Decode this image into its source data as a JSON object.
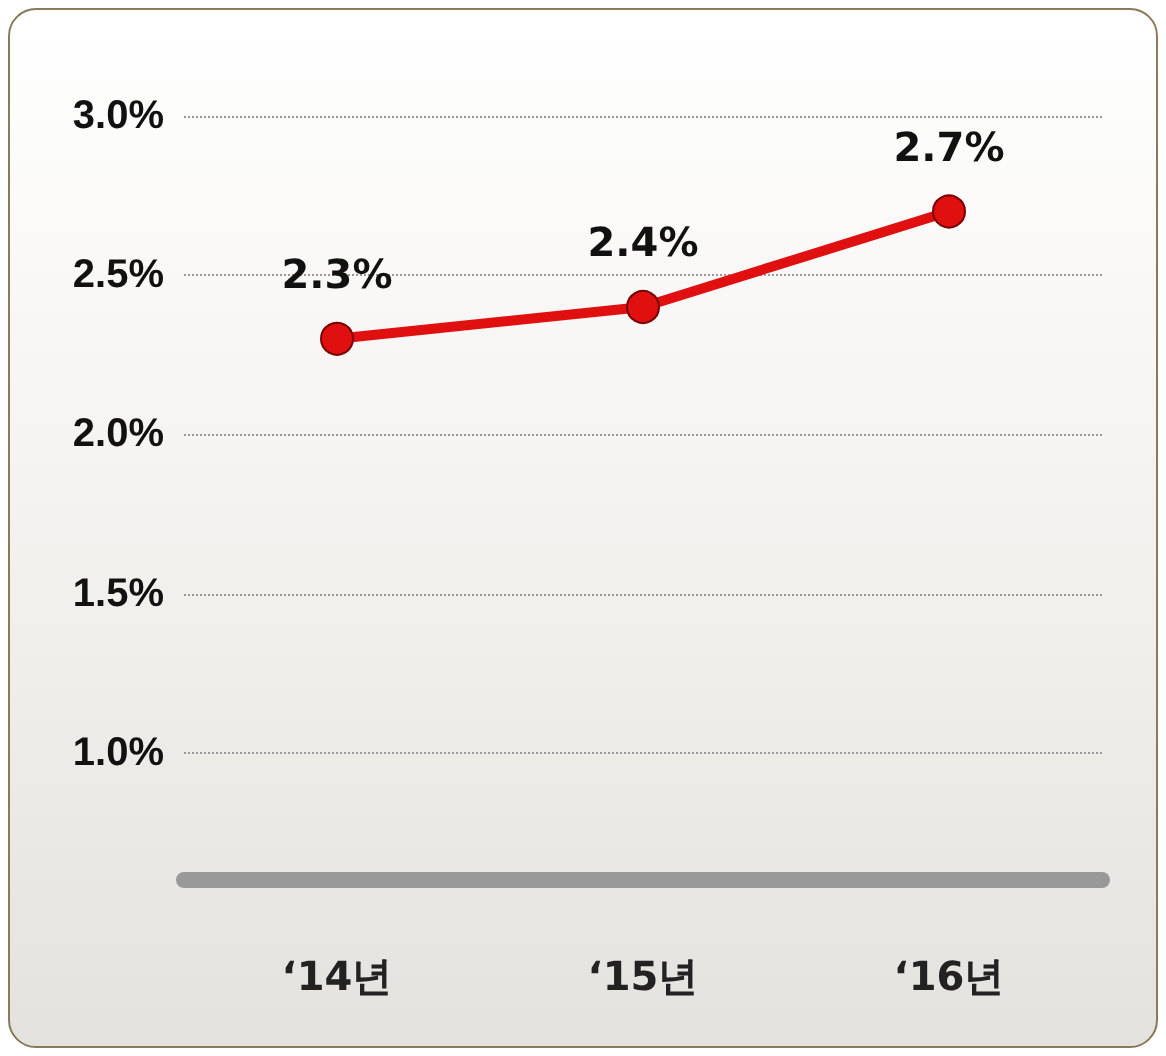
{
  "chart_data": {
    "type": "line",
    "categories": [
      "‘14년",
      "‘15년",
      "‘16년"
    ],
    "series": [
      {
        "color": "#e01010",
        "values": [
          2.3,
          2.4,
          2.7
        ],
        "value_labels": [
          "2.3%",
          "2.4%",
          "2.7%"
        ]
      }
    ],
    "ylim": [
      0.6,
      3.0
    ],
    "yticks": [
      {
        "value": 1.0,
        "label": "1.0%"
      },
      {
        "value": 1.5,
        "label": "1.5%"
      },
      {
        "value": 2.0,
        "label": "2.0%"
      },
      {
        "value": 2.5,
        "label": "2.5%"
      },
      {
        "value": 3.0,
        "label": "3.0%"
      }
    ],
    "grid": "y",
    "marker": "circle",
    "line_style": "solid"
  }
}
